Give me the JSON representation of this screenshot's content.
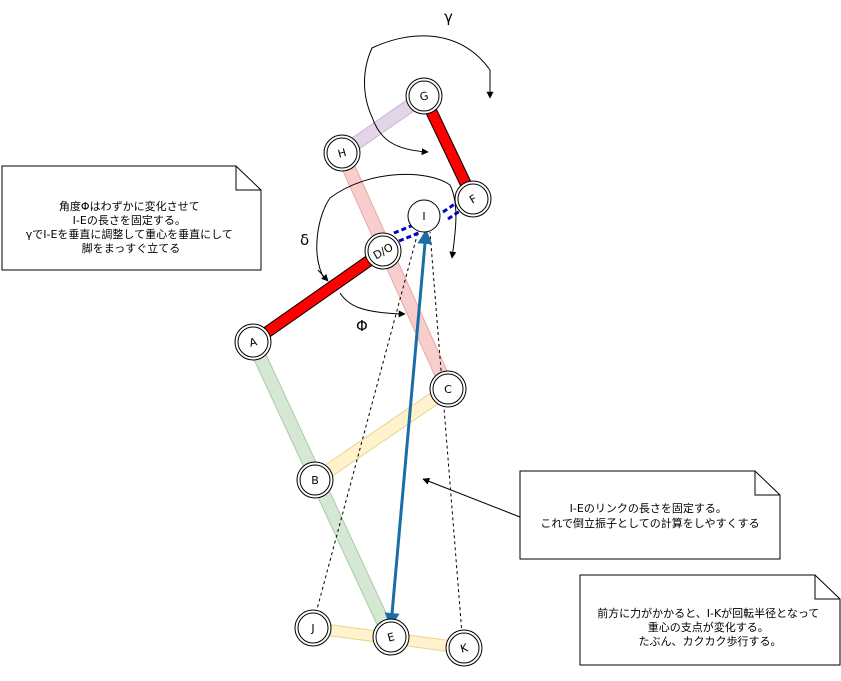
{
  "nodes": {
    "G": "G",
    "H": "H",
    "F": "F",
    "I": "I",
    "DO": "D/O",
    "A": "A",
    "C": "C",
    "B": "B",
    "J": "J",
    "E": "E",
    "K": "K"
  },
  "greek": {
    "gamma": "γ",
    "delta": "δ",
    "phi": "Φ"
  },
  "notes": {
    "angle_note": [
      "角度Φはわずかに変化させて",
      "I-Eの長さを固定する。",
      "γでI-Eを垂直に調整して重心を垂直にして",
      "脚をまっすぐ立てる"
    ],
    "link_note": [
      "I-Eのリンクの長さを固定する。",
      "これで倒立振子としての計算をしやすくする"
    ],
    "force_note": [
      "前方に力がかかると、I-Kが回転半径となって",
      "重心の支点が変化する。",
      "たぶん、カクカク歩行する。"
    ]
  },
  "colors": {
    "red_link": "#ff0000",
    "purple_link": "#e1d5e7",
    "pink_link": "#f8cecc",
    "green_link": "#d5e8d4",
    "yellow_link": "#fff2cc",
    "blue_link": "#1a6ea8",
    "dashed_blue": "#0000cc"
  }
}
